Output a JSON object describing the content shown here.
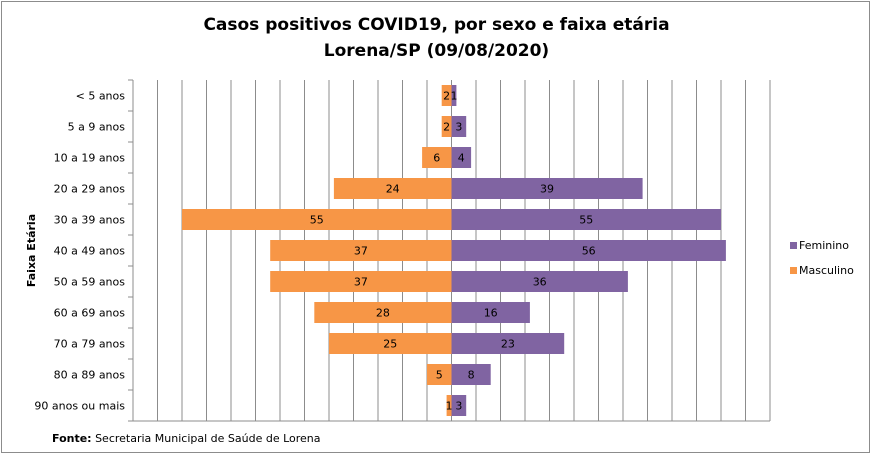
{
  "chart_data": {
    "type": "bar",
    "orientation": "horizontal",
    "layout": "population-pyramid",
    "title_lines": [
      "Casos positivos  COVID19, por sexo e faixa etária",
      "Lorena/SP (09/08/2020)"
    ],
    "ylabel": "Faixa Etária",
    "xlabel": "",
    "categories": [
      "< 5 anos",
      "5 a 9 anos",
      "10 a 19 anos",
      "20 a 29 anos",
      "30 a 39 anos",
      "40 a 49 anos",
      "50 a 59 anos",
      "60 a 69 anos",
      "70 a 79 anos",
      "80 a 89 anos",
      "90 anos ou mais"
    ],
    "series": [
      {
        "name": "Feminino",
        "color": "#8064a2",
        "side": "right",
        "values": [
          1,
          3,
          4,
          39,
          55,
          56,
          36,
          16,
          23,
          8,
          3
        ]
      },
      {
        "name": "Masculino",
        "color": "#f79646",
        "side": "left",
        "values": [
          2,
          2,
          6,
          24,
          55,
          37,
          37,
          28,
          25,
          5,
          1
        ]
      }
    ],
    "xlim": [
      -65,
      65
    ],
    "grid": true,
    "legend_position": "right"
  },
  "footer": {
    "source_label": "Fonte:",
    "source_text": " Secretaria Municipal de Saúde de Lorena"
  }
}
